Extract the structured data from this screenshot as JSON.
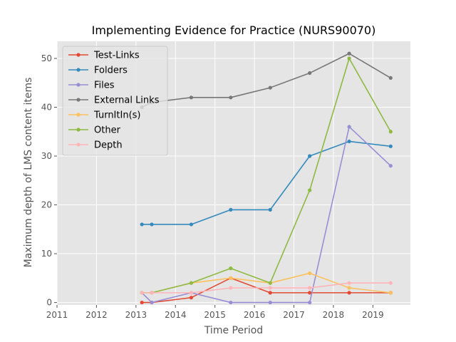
{
  "chart_data": {
    "type": "line",
    "title": "Implementing Evidence for Practice (NURS90070)",
    "xlabel": "Time Period",
    "ylabel": "Maximum depth of LMS content items",
    "xlim": [
      2011.0,
      2019.95
    ],
    "ylim": [
      -0.5,
      53.5
    ],
    "x_ticks": [
      2011,
      2012,
      2013,
      2014,
      2015,
      2016,
      2017,
      2018,
      2019
    ],
    "x_tick_labels": [
      "2011",
      "2012",
      "2013",
      "2014",
      "2015",
      "2016",
      "2017",
      "2018",
      "2019"
    ],
    "y_ticks": [
      0,
      10,
      20,
      30,
      40,
      50
    ],
    "y_tick_labels": [
      "0",
      "10",
      "20",
      "30",
      "40",
      "50"
    ],
    "grid": true,
    "legend_position": "top-left",
    "background": "#e5e5e5",
    "series": [
      {
        "name": "Test-Links",
        "color": "#e24a33",
        "x": [
          2013.15,
          2013.4,
          2014.4,
          2015.4,
          2016.4,
          2017.4,
          2018.4,
          2019.45
        ],
        "y": [
          0,
          0,
          1,
          5,
          2,
          2,
          2,
          2
        ]
      },
      {
        "name": "Folders",
        "color": "#348abd",
        "x": [
          2013.15,
          2013.4,
          2014.4,
          2015.4,
          2016.4,
          2017.4,
          2018.4,
          2019.45
        ],
        "y": [
          16,
          16,
          16,
          19,
          19,
          30,
          33,
          32
        ]
      },
      {
        "name": "Files",
        "color": "#988ed5",
        "x": [
          2013.15,
          2013.4,
          2014.4,
          2015.4,
          2016.4,
          2017.4,
          2018.4,
          2019.45
        ],
        "y": [
          2,
          0,
          2,
          0,
          0,
          0,
          36,
          28
        ]
      },
      {
        "name": "External Links",
        "color": "#777777",
        "x": [
          2013.15,
          2013.4,
          2014.4,
          2015.4,
          2016.4,
          2017.4,
          2018.4,
          2019.45
        ],
        "y": [
          40,
          41,
          42,
          42,
          44,
          47,
          51,
          46
        ]
      },
      {
        "name": "TurnItIn(s)",
        "color": "#fbc15e",
        "x": [
          2013.15,
          2013.4,
          2014.4,
          2015.4,
          2016.4,
          2017.4,
          2018.4,
          2019.45
        ],
        "y": [
          2,
          2,
          4,
          5,
          4,
          6,
          3,
          2
        ]
      },
      {
        "name": "Other",
        "color": "#8eba42",
        "x": [
          2013.15,
          2013.4,
          2014.4,
          2015.4,
          2016.4,
          2017.4,
          2018.4,
          2019.45
        ],
        "y": [
          2,
          2,
          4,
          7,
          4,
          23,
          50,
          35
        ]
      },
      {
        "name": "Depth",
        "color": "#ffb5b8",
        "x": [
          2013.15,
          2013.4,
          2014.4,
          2015.4,
          2016.4,
          2017.4,
          2018.4,
          2019.45
        ],
        "y": [
          2,
          2,
          2,
          3,
          3,
          3,
          4,
          4
        ]
      }
    ]
  }
}
